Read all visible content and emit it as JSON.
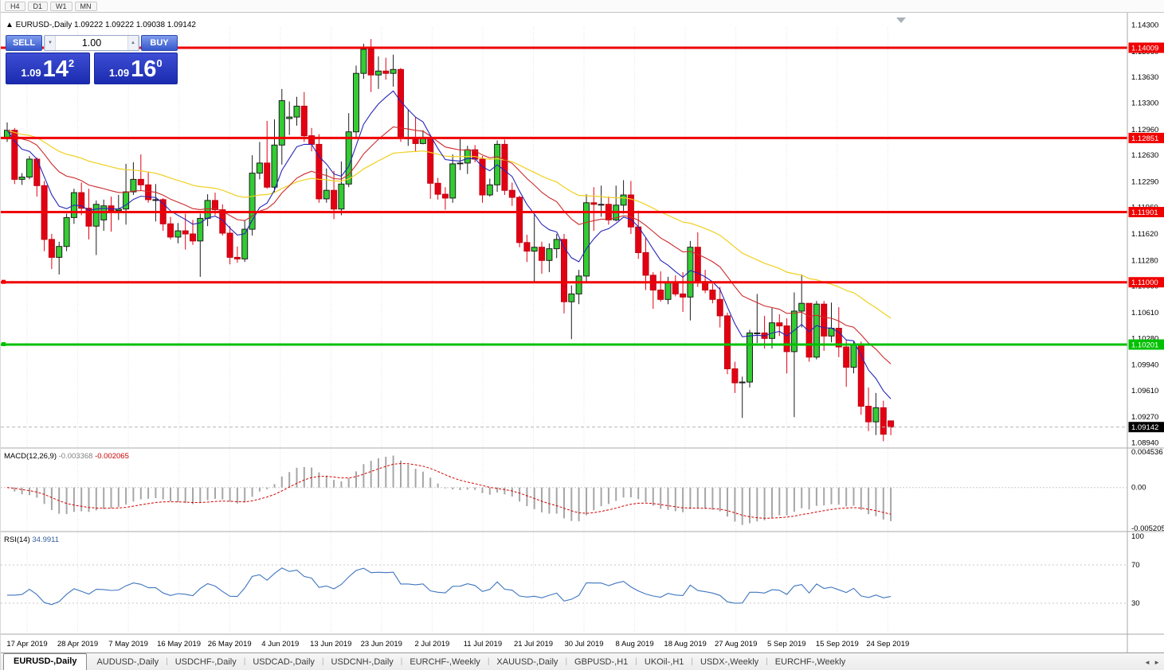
{
  "toolbar": {
    "timeframes": [
      "H4",
      "D1",
      "W1",
      "MN"
    ]
  },
  "chart": {
    "collapse_icon": "▲",
    "symbol_line": {
      "symbol": "EURUSD-,Daily",
      "open": "1.09222",
      "high": "1.09222",
      "low": "1.09038",
      "close": "1.09142"
    },
    "one_click": {
      "sell_label": "SELL",
      "buy_label": "BUY",
      "quantity": "1.00",
      "spinner_up_icon": "▲",
      "spinner_down_icon": "▼",
      "sell_price": {
        "prefix": "1.09",
        "big": "14",
        "sup": "2"
      },
      "buy_price": {
        "prefix": "1.09",
        "big": "16",
        "sup": "0"
      }
    },
    "price_axis_ticks": [
      "1.14300",
      "1.13960",
      "1.13630",
      "1.13300",
      "1.12960",
      "1.12630",
      "1.12290",
      "1.11960",
      "1.11620",
      "1.11280",
      "1.10950",
      "1.10610",
      "1.10280",
      "1.09940",
      "1.09610",
      "1.09270",
      "1.08940"
    ],
    "hlines": [
      {
        "price": 1.14009,
        "label": "1.14009",
        "color": "#f00000",
        "width": 3,
        "handles": false
      },
      {
        "price": 1.12851,
        "label": "1.12851",
        "color": "#f00000",
        "width": 3,
        "handles": false
      },
      {
        "price": 1.11901,
        "label": "1.11901",
        "color": "#f00000",
        "width": 3,
        "handles": false
      },
      {
        "price": 1.11,
        "label": "1.11000",
        "color": "#f00000",
        "width": 3,
        "handles": true
      },
      {
        "price": 1.10201,
        "label": "1.10201",
        "color": "#00c000",
        "width": 3,
        "handles": true
      }
    ],
    "current_price": {
      "value": 1.09142,
      "label": "1.09142"
    },
    "x_labels": [
      "17 Apr 2019",
      "28 Apr 2019",
      "7 May 2019",
      "16 May 2019",
      "26 May 2019",
      "4 Jun 2019",
      "13 Jun 2019",
      "23 Jun 2019",
      "2 Jul 2019",
      "11 Jul 2019",
      "21 Jul 2019",
      "30 Jul 2019",
      "8 Aug 2019",
      "18 Aug 2019",
      "27 Aug 2019",
      "5 Sep 2019",
      "15 Sep 2019",
      "24 Sep 2019"
    ],
    "candles": [
      [
        1.1284,
        1.1305,
        1.128,
        1.1295
      ],
      [
        1.1295,
        1.1298,
        1.1226,
        1.1232
      ],
      [
        1.1232,
        1.124,
        1.1225,
        1.1235
      ],
      [
        1.1235,
        1.1262,
        1.1232,
        1.1258
      ],
      [
        1.1258,
        1.126,
        1.121,
        1.1224
      ],
      [
        1.1224,
        1.123,
        1.114,
        1.1155
      ],
      [
        1.1155,
        1.1162,
        1.1117,
        1.1132
      ],
      [
        1.1132,
        1.1152,
        1.111,
        1.1146
      ],
      [
        1.1146,
        1.1188,
        1.114,
        1.1183
      ],
      [
        1.1183,
        1.122,
        1.1175,
        1.1215
      ],
      [
        1.1215,
        1.1228,
        1.1186,
        1.1195
      ],
      [
        1.1195,
        1.122,
        1.1155,
        1.1172
      ],
      [
        1.1172,
        1.1205,
        1.1135,
        1.12
      ],
      [
        1.118,
        1.1206,
        1.1166,
        1.1198
      ],
      [
        1.1198,
        1.121,
        1.1165,
        1.1192
      ],
      [
        1.1192,
        1.1212,
        1.118,
        1.1194
      ],
      [
        1.1194,
        1.1252,
        1.1174,
        1.1216
      ],
      [
        1.1216,
        1.1254,
        1.1212,
        1.1232
      ],
      [
        1.1232,
        1.1264,
        1.1218,
        1.1225
      ],
      [
        1.1225,
        1.1242,
        1.1202,
        1.1206
      ],
      [
        1.1206,
        1.1226,
        1.1178,
        1.1206
      ],
      [
        1.1206,
        1.1208,
        1.1166,
        1.1175
      ],
      [
        1.1175,
        1.1184,
        1.1155,
        1.1158
      ],
      [
        1.1158,
        1.1176,
        1.115,
        1.1166
      ],
      [
        1.1166,
        1.1188,
        1.1142,
        1.1162
      ],
      [
        1.1162,
        1.118,
        1.1148,
        1.1153
      ],
      [
        1.1153,
        1.1188,
        1.1107,
        1.1182
      ],
      [
        1.1182,
        1.1213,
        1.1172,
        1.1205
      ],
      [
        1.1205,
        1.1215,
        1.1186,
        1.1193
      ],
      [
        1.1193,
        1.12,
        1.116,
        1.1163
      ],
      [
        1.1163,
        1.1172,
        1.1123,
        1.1132
      ],
      [
        1.1132,
        1.1146,
        1.1125,
        1.113
      ],
      [
        1.113,
        1.118,
        1.1126,
        1.1168
      ],
      [
        1.1168,
        1.1263,
        1.116,
        1.124
      ],
      [
        1.124,
        1.128,
        1.1232,
        1.1253
      ],
      [
        1.1253,
        1.1307,
        1.122,
        1.1222
      ],
      [
        1.1222,
        1.1309,
        1.1215,
        1.1276
      ],
      [
        1.1276,
        1.1348,
        1.1251,
        1.1333
      ],
      [
        1.131,
        1.1332,
        1.1289,
        1.1312
      ],
      [
        1.1312,
        1.1338,
        1.1301,
        1.1326
      ],
      [
        1.1326,
        1.1344,
        1.128,
        1.1288
      ],
      [
        1.1288,
        1.1298,
        1.1268,
        1.1277
      ],
      [
        1.1277,
        1.129,
        1.1202,
        1.1207
      ],
      [
        1.1207,
        1.1246,
        1.1202,
        1.1218
      ],
      [
        1.1218,
        1.1243,
        1.1181,
        1.1194
      ],
      [
        1.1194,
        1.1255,
        1.1186,
        1.1226
      ],
      [
        1.1226,
        1.1317,
        1.1222,
        1.1293
      ],
      [
        1.1293,
        1.1378,
        1.1285,
        1.1368
      ],
      [
        1.1368,
        1.1406,
        1.1361,
        1.1399
      ],
      [
        1.1399,
        1.1412,
        1.1344,
        1.1366
      ],
      [
        1.1366,
        1.139,
        1.1348,
        1.1371
      ],
      [
        1.1371,
        1.1388,
        1.136,
        1.1368
      ],
      [
        1.1368,
        1.1392,
        1.1351,
        1.1373
      ],
      [
        1.1373,
        1.1375,
        1.128,
        1.1285
      ],
      [
        1.1285,
        1.1322,
        1.1275,
        1.1285
      ],
      [
        1.1285,
        1.1312,
        1.1268,
        1.1278
      ],
      [
        1.1278,
        1.1295,
        1.1277,
        1.1285
      ],
      [
        1.1285,
        1.1289,
        1.1207,
        1.1227
      ],
      [
        1.1227,
        1.1234,
        1.1206,
        1.1213
      ],
      [
        1.1213,
        1.1222,
        1.1193,
        1.1208
      ],
      [
        1.1208,
        1.1264,
        1.1202,
        1.1252
      ],
      [
        1.1252,
        1.1285,
        1.1244,
        1.1253
      ],
      [
        1.1253,
        1.1275,
        1.1239,
        1.127
      ],
      [
        1.127,
        1.1276,
        1.1254,
        1.1258
      ],
      [
        1.1258,
        1.1262,
        1.1202,
        1.1212
      ],
      [
        1.1212,
        1.1233,
        1.121,
        1.1225
      ],
      [
        1.1225,
        1.1282,
        1.1216,
        1.1277
      ],
      [
        1.1277,
        1.1283,
        1.1212,
        1.1218
      ],
      [
        1.1218,
        1.1228,
        1.1198,
        1.1209
      ],
      [
        1.1209,
        1.1211,
        1.1145,
        1.1151
      ],
      [
        1.1151,
        1.1161,
        1.1126,
        1.114
      ],
      [
        1.114,
        1.1187,
        1.1101,
        1.1145
      ],
      [
        1.1145,
        1.1152,
        1.1111,
        1.1128
      ],
      [
        1.1128,
        1.115,
        1.1113,
        1.1143
      ],
      [
        1.1143,
        1.1162,
        1.1131,
        1.1155
      ],
      [
        1.1155,
        1.1162,
        1.106,
        1.1075
      ],
      [
        1.1075,
        1.1096,
        1.1027,
        1.1085
      ],
      [
        1.1085,
        1.1116,
        1.1072,
        1.1108
      ],
      [
        1.1108,
        1.1213,
        1.1101,
        1.1202
      ],
      [
        1.1202,
        1.1222,
        1.1166,
        1.12
      ],
      [
        1.12,
        1.1224,
        1.1184,
        1.12
      ],
      [
        1.12,
        1.121,
        1.1174,
        1.118
      ],
      [
        1.118,
        1.1224,
        1.1178,
        1.1199
      ],
      [
        1.1199,
        1.1231,
        1.1188,
        1.1212
      ],
      [
        1.1212,
        1.123,
        1.1162,
        1.1171
      ],
      [
        1.1171,
        1.1192,
        1.113,
        1.1138
      ],
      [
        1.1138,
        1.1158,
        1.109,
        1.1109
      ],
      [
        1.1109,
        1.1113,
        1.1066,
        1.109
      ],
      [
        1.109,
        1.1114,
        1.1075,
        1.1078
      ],
      [
        1.1078,
        1.1107,
        1.1072,
        1.11
      ],
      [
        1.11,
        1.1109,
        1.1082,
        1.1085
      ],
      [
        1.1085,
        1.1113,
        1.1062,
        1.1081
      ],
      [
        1.1081,
        1.1153,
        1.1051,
        1.1145
      ],
      [
        1.1145,
        1.1164,
        1.1094,
        1.1101
      ],
      [
        1.1101,
        1.1116,
        1.1086,
        1.109
      ],
      [
        1.109,
        1.1098,
        1.1073,
        1.1078
      ],
      [
        1.1078,
        1.1094,
        1.1042,
        1.1057
      ],
      [
        1.1057,
        1.1061,
        1.0982,
        1.0989
      ],
      [
        1.0989,
        1.0998,
        1.0958,
        1.0971
      ],
      [
        1.0971,
        1.0979,
        1.0926,
        1.0972
      ],
      [
        1.0972,
        1.1039,
        1.0965,
        1.1035
      ],
      [
        1.1035,
        1.1085,
        1.1022,
        1.1035
      ],
      [
        1.1035,
        1.1057,
        1.1015,
        1.1028
      ],
      [
        1.1028,
        1.1067,
        1.1015,
        1.1048
      ],
      [
        1.1048,
        1.1059,
        1.1031,
        1.1044
      ],
      [
        1.1044,
        1.1054,
        1.0983,
        1.1011
      ],
      [
        1.1011,
        1.1087,
        1.0927,
        1.1063
      ],
      [
        1.1063,
        1.111,
        1.1042,
        1.1073
      ],
      [
        1.1073,
        1.1073,
        1.0998,
        1.1004
      ],
      [
        1.1004,
        1.1076,
        1.1001,
        1.1072
      ],
      [
        1.1072,
        1.1076,
        1.1012,
        1.1031
      ],
      [
        1.1031,
        1.1074,
        1.1023,
        1.1041
      ],
      [
        1.1041,
        1.1068,
        1.1004,
        1.1017
      ],
      [
        1.1017,
        1.1026,
        1.0966,
        1.0991
      ],
      [
        1.0991,
        1.1024,
        1.0983,
        1.1021
      ],
      [
        1.1021,
        1.1024,
        1.093,
        1.0941
      ],
      [
        1.0941,
        1.0965,
        1.0909,
        1.0921
      ],
      [
        1.0921,
        1.0958,
        1.0904,
        1.0939
      ],
      [
        1.0939,
        1.0948,
        1.0896,
        1.0905
      ],
      [
        1.09222,
        1.09222,
        1.09038,
        1.09142
      ]
    ]
  },
  "indicators": {
    "macd": {
      "label": "MACD(12,26,9)",
      "value_main": "-0.003368",
      "value_signal": "-0.002065",
      "fast": 12,
      "slow": 26,
      "signal": 9,
      "axis_ticks": [
        "0.004536",
        "0.00",
        "-0.005205"
      ],
      "axis_max": 0.004536,
      "axis_min": -0.005205
    },
    "rsi": {
      "label": "RSI(14)",
      "value": "34.9911",
      "period": 14,
      "levels": [
        30,
        70
      ],
      "axis_ticks": [
        "100",
        "70",
        "30"
      ]
    }
  },
  "tabs": {
    "items": [
      {
        "label": "EURUSD-,Daily",
        "active": true
      },
      {
        "label": "AUDUSD-,Daily",
        "active": false
      },
      {
        "label": "USDCHF-,Daily",
        "active": false
      },
      {
        "label": "USDCAD-,Daily",
        "active": false
      },
      {
        "label": "USDCNH-,Daily",
        "active": false
      },
      {
        "label": "EURCHF-,Weekly",
        "active": false
      },
      {
        "label": "XAUUSD-,Daily",
        "active": false
      },
      {
        "label": "GBPUSD-,H1",
        "active": false
      },
      {
        "label": "UKOil-,H1",
        "active": false
      },
      {
        "label": "USDX-,Weekly",
        "active": false
      },
      {
        "label": "EURCHF-,Weekly",
        "active": false
      }
    ],
    "scroll_icon": "◄ ►"
  },
  "colors": {
    "bull": "#33cc33",
    "bull_line": "#1d1d1d",
    "bear": "#e30013",
    "bear_line": "#c00010",
    "ma_fast": "#2626b8",
    "ma_mid": "#cc2a2a",
    "ma_slow": "#f0d020",
    "macd_hist": "#a6a6a6",
    "macd_signal": "#d40000",
    "rsi": "#3f76bf",
    "hline_red": "#f00000",
    "hline_green": "#00c000",
    "badge_current": "#000000",
    "buy_sell_button": "#3b5fd0",
    "price_panel": "#2433c4"
  }
}
